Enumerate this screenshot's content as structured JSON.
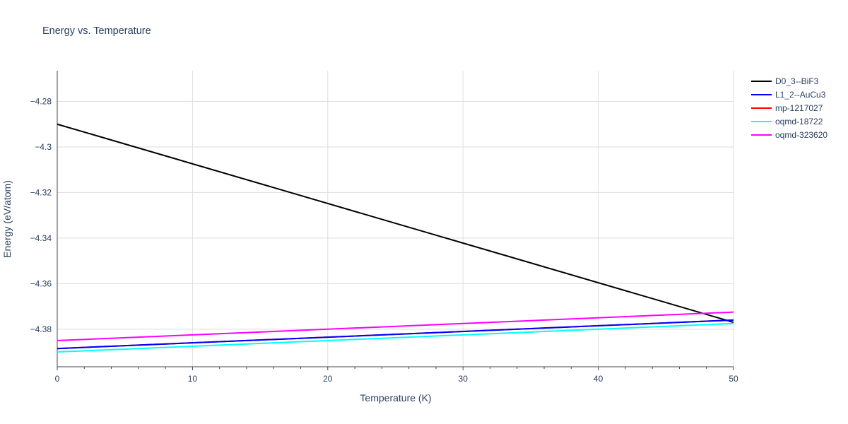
{
  "chart_data": {
    "type": "line",
    "title": "Energy vs. Temperature",
    "xlabel": "Temperature (K)",
    "ylabel": "Energy (eV/atom)",
    "xlim": [
      0,
      50
    ],
    "ylim": [
      -4.3965,
      -4.2665
    ],
    "x_ticks": [
      0,
      10,
      20,
      30,
      40,
      50
    ],
    "y_ticks": [
      -4.28,
      -4.3,
      -4.32,
      -4.34,
      -4.36,
      -4.38
    ],
    "y_tick_labels": [
      "−4.28",
      "−4.3",
      "−4.32",
      "−4.34",
      "−4.36",
      "−4.38"
    ],
    "grid": true,
    "legend_position": "top-right",
    "series": [
      {
        "name": "D0_3--BiF3",
        "color": "#000000",
        "x": [
          0,
          50
        ],
        "y": [
          -4.29,
          -4.377
        ]
      },
      {
        "name": "L1_2--AuCu3",
        "color": "#0000ff",
        "x": [
          0,
          50
        ],
        "y": [
          -4.3885,
          -4.376
        ]
      },
      {
        "name": "mp-1217027",
        "color": "#ff0000",
        "x": [
          0,
          50
        ],
        "y": [
          -4.3885,
          -4.376
        ]
      },
      {
        "name": "oqmd-18722",
        "color": "#00ffff",
        "x": [
          0,
          50
        ],
        "y": [
          -4.39,
          -4.3775
        ]
      },
      {
        "name": "oqmd-323620",
        "color": "#ff00ff",
        "x": [
          0,
          50
        ],
        "y": [
          -4.385,
          -4.3725
        ]
      }
    ]
  }
}
